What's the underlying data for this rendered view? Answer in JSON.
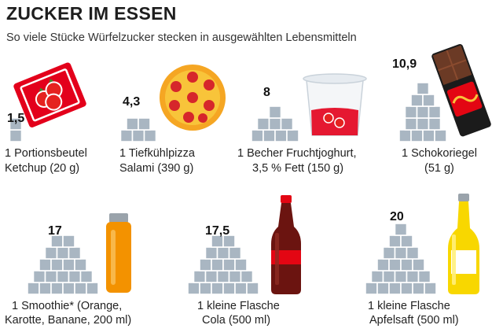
{
  "header": {
    "title": "ZUCKER IM ESSEN",
    "subtitle": "So viele Stücke Würfelzucker stecken in ausgewählten Lebensmitteln"
  },
  "colors": {
    "sugar_cube": "#a9b6c2",
    "cube_edge": "#ffffff",
    "ketchup_red": "#e3001b",
    "tomato_red": "#e52320",
    "pizza_crust": "#f5a623",
    "cheese": "#f8c43a",
    "salami": "#d6262b",
    "chocolate": "#5a2d1f",
    "smoothie_orange": "#f39200",
    "cola_red": "#e30613",
    "apple_juice": "#f8d700"
  },
  "items": [
    {
      "value": "1,5",
      "line1": "1 Portionsbeutel",
      "line2": "Ketchup (20 g)",
      "cubes": 1.5,
      "product_icon": "ketchup-packet-icon"
    },
    {
      "value": "4,3",
      "line1": "1 Tiefkühlpizza",
      "line2": "Salami (390 g)",
      "cubes": 4.3,
      "product_icon": "pizza-icon"
    },
    {
      "value": "8",
      "line1": "1 Becher Fruchtjoghurt,",
      "line2": "3,5 % Fett (150 g)",
      "cubes": 8,
      "product_icon": "yogurt-cup-icon"
    },
    {
      "value": "10,9",
      "line1": "1 Schokoriegel",
      "line2": "(51 g)",
      "cubes": 10.9,
      "product_icon": "chocolate-bar-icon"
    },
    {
      "value": "17",
      "line1": "1 Smoothie* (Orange,",
      "line2": "Karotte, Banane, 200 ml)",
      "cubes": 17,
      "product_icon": "smoothie-bottle-icon"
    },
    {
      "value": "17,5",
      "line1": "1 kleine Flasche",
      "line2": "Cola (500 ml)",
      "cubes": 17.5,
      "product_icon": "cola-bottle-icon"
    },
    {
      "value": "20",
      "line1": "1 kleine Flasche",
      "line2": "Apfelsaft (500 ml)",
      "cubes": 20,
      "product_icon": "apple-juice-bottle-icon"
    }
  ]
}
